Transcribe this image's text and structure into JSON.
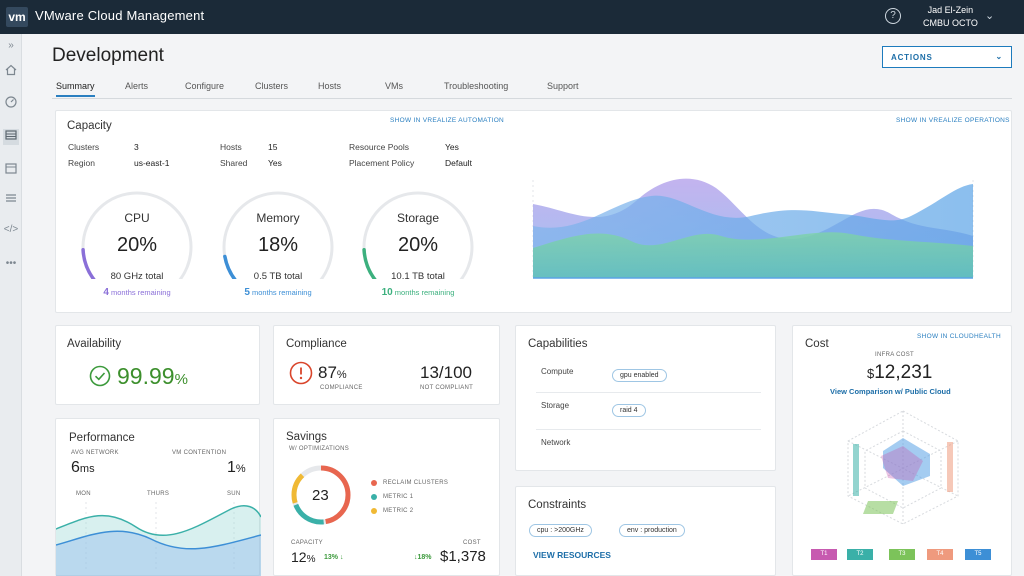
{
  "app": {
    "logo": "vm",
    "title": "VMware Cloud Management",
    "user_name": "Jad El-Zein",
    "user_org": "CMBU OCTO",
    "help": "?"
  },
  "nav_icons": [
    "expand-icon",
    "home-icon",
    "dashboard-icon",
    "inventory-icon",
    "calendar-icon",
    "list-icon",
    "code-icon",
    "more-icon"
  ],
  "page": {
    "title": "Development",
    "actions_label": "ACTIONS",
    "tabs": [
      "Summary",
      "Alerts",
      "Configure",
      "Clusters",
      "Hosts",
      "VMs",
      "Troubleshooting",
      "Support"
    ]
  },
  "capacity": {
    "title": "Capacity",
    "link_automation": "SHOW IN VREALIZE AUTOMATION",
    "link_operations": "SHOW IN VREALIZE OPERATIONS",
    "info": [
      {
        "label": "Clusters",
        "value": "3"
      },
      {
        "label": "Region",
        "value": "us-east-1"
      },
      {
        "label": "Hosts",
        "value": "15"
      },
      {
        "label": "Shared",
        "value": "Yes"
      },
      {
        "label": "Resource Pools",
        "value": "Yes"
      },
      {
        "label": "Placement Policy",
        "value": "Default"
      }
    ],
    "gauges": [
      {
        "label": "CPU",
        "pct": "20%",
        "fraction": 0.2,
        "total": "80 GHz total",
        "rem_num": "4",
        "rem_text": "months remaining",
        "color": "#8a6fd8"
      },
      {
        "label": "Memory",
        "pct": "18%",
        "fraction": 0.18,
        "total": "0.5 TB total",
        "rem_num": "5",
        "rem_text": "months remaining",
        "color": "#3d8fd6"
      },
      {
        "label": "Storage",
        "pct": "20%",
        "fraction": 0.2,
        "total": "10.1 TB total",
        "rem_num": "10",
        "rem_text": "months remaining",
        "color": "#3cb07e"
      }
    ]
  },
  "availability": {
    "title": "Availability",
    "value": "99.99",
    "unit": "%"
  },
  "compliance": {
    "title": "Compliance",
    "pct_value": "87",
    "pct_unit": "%",
    "pct_label": "COMPLIANCE",
    "count": "13/100",
    "count_label": "NOT COMPLIANT"
  },
  "capabilities": {
    "title": "Capabilities",
    "rows": [
      {
        "label": "Compute",
        "tag": "gpu enabled"
      },
      {
        "label": "Storage",
        "tag": "raid 4"
      },
      {
        "label": "Network",
        "tag": ""
      }
    ]
  },
  "cost": {
    "title": "Cost",
    "link": "SHOW IN CLOUDHEALTH",
    "infra_label": "INFRA COST",
    "currency": "$",
    "amount": "12,231",
    "compare_link": "View Comparison w/ Public Cloud",
    "tiers": [
      {
        "label": "T1",
        "color": "#c75ab0"
      },
      {
        "label": "T2",
        "color": "#3ab0a8"
      },
      {
        "label": "T3",
        "color": "#7cc35a"
      },
      {
        "label": "T4",
        "color": "#ef9a7e"
      },
      {
        "label": "T5",
        "color": "#3d8fd6"
      }
    ]
  },
  "performance": {
    "title": "Performance",
    "net_label": "AVG NETWORK",
    "net_value": "6",
    "net_unit": "ms",
    "vm_label": "VM CONTENTION",
    "vm_value": "1",
    "vm_unit": "%",
    "days": [
      "MON",
      "THURS",
      "SUN"
    ]
  },
  "savings": {
    "title": "Savings",
    "subtitle": "W/ OPTIMIZATIONS",
    "center": "23",
    "legend": [
      {
        "label": "RECLAIM CLUSTERS",
        "color": "#e8664f"
      },
      {
        "label": "METRIC 1",
        "color": "#3ab0a8"
      },
      {
        "label": "METRIC 2",
        "color": "#f0b934"
      }
    ],
    "capacity_label": "CAPACITY",
    "capacity_value": "12",
    "capacity_unit": "%",
    "capacity_delta": "13% ↓",
    "cost_label": "COST",
    "cost_delta": "↓18%",
    "cost_value": "$1,378"
  },
  "constraints": {
    "title": "Constraints",
    "tags": [
      "cpu : >200GHz",
      "env : production"
    ],
    "link": "VIEW RESOURCES"
  }
}
